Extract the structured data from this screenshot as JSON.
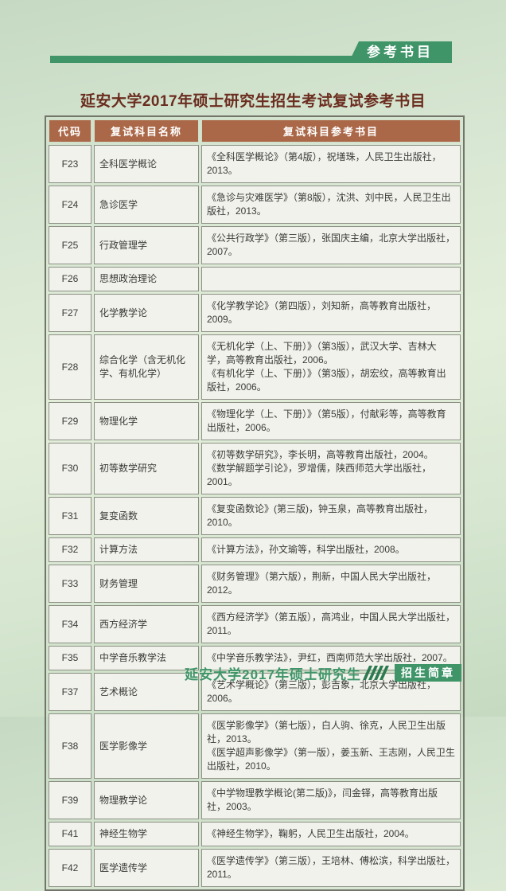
{
  "page": {
    "banner_label": "参考书目",
    "title": "延安大学2017年硕士研究生招生考试复试参考书目",
    "footer": {
      "series_text": "延安大学2017年硕士研究生",
      "badge_label": "招生简章"
    }
  },
  "colors": {
    "accent_green": "#3f9468",
    "slash_green": "#2c7a50",
    "header_bg": "#ab6848",
    "title_color": "#6b2d1f",
    "cell_bg": "#f1f2ec",
    "cell_border": "#8e9086"
  },
  "table": {
    "columns": [
      "代码",
      "复试科目名称",
      "复试科目参考书目"
    ],
    "rows": [
      {
        "code": "F23",
        "subject": "全科医学概论",
        "books": [
          "《全科医学概论》（第4版），祝墡珠，人民卫生出版社，2013。"
        ]
      },
      {
        "code": "F24",
        "subject": "急诊医学",
        "books": [
          "《急诊与灾难医学》（第8版），沈洪、刘中民，人民卫生出版社，2013。"
        ]
      },
      {
        "code": "F25",
        "subject": "行政管理学",
        "books": [
          "《公共行政学》（第三版），张国庆主编，北京大学出版社，2007。"
        ]
      },
      {
        "code": "F26",
        "subject": "思想政治理论",
        "books": []
      },
      {
        "code": "F27",
        "subject": "化学教学论",
        "books": [
          "《化学教学论》（第四版），刘知新，高等教育出版社，2009。"
        ]
      },
      {
        "code": "F28",
        "subject": "综合化学（含无机化学、有机化学）",
        "books": [
          "《无机化学（上、下册）》（第3版），武汉大学、吉林大学，高等教育出版社，2006。",
          "《有机化学（上、下册）》（第3版），胡宏纹，高等教育出版社，2006。"
        ]
      },
      {
        "code": "F29",
        "subject": "物理化学",
        "books": [
          "《物理化学（上、下册）》（第5版），付献彩等，高等教育出版社，2006。"
        ]
      },
      {
        "code": "F30",
        "subject": "初等数学研究",
        "books": [
          "《初等数学研究》，李长明，高等教育出版社，2004。",
          "《数学解题学引论》，罗增儒，陕西师范大学出版社，2001。"
        ]
      },
      {
        "code": "F31",
        "subject": "复变函数",
        "books": [
          "《复变函数论》(第三版)，钟玉泉，高等教育出版社，2010。"
        ]
      },
      {
        "code": "F32",
        "subject": "计算方法",
        "books": [
          "《计算方法》，孙文瑜等，科学出版社，2008。"
        ]
      },
      {
        "code": "F33",
        "subject": "财务管理",
        "books": [
          "《财务管理》（第六版），荆新，中国人民大学出版社，2012。"
        ]
      },
      {
        "code": "F34",
        "subject": "西方经济学",
        "books": [
          "《西方经济学》（第五版），高鸿业，中国人民大学出版社，2011。"
        ]
      },
      {
        "code": "F35",
        "subject": "中学音乐教学法",
        "books": [
          "《中学音乐教学法》，尹红，西南师范大学出版社，2007。"
        ]
      },
      {
        "code": "F37",
        "subject": "艺术概论",
        "books": [
          "《艺术学概论》（第三版），彭吉象，北京大学出版社，2006。"
        ]
      },
      {
        "code": "F38",
        "subject": "医学影像学",
        "books": [
          "《医学影像学》（第七版），白人驹、徐克，人民卫生出版社，2013。",
          "《医学超声影像学》（第一版），姜玉新、王志刚，人民卫生出版社，2010。"
        ]
      },
      {
        "code": "F39",
        "subject": "物理教学论",
        "books": [
          "《中学物理教学概论(第二版)》，闫金铎，高等教育出版社，2003。"
        ]
      },
      {
        "code": "F41",
        "subject": "神经生物学",
        "books": [
          "《神经生物学》，鞠躬，人民卫生出版社，2004。"
        ]
      },
      {
        "code": "F42",
        "subject": "医学遗传学",
        "books": [
          "《医学遗传学》（第三版），王培林、傅松滨，科学出版社，2011。"
        ]
      }
    ]
  }
}
